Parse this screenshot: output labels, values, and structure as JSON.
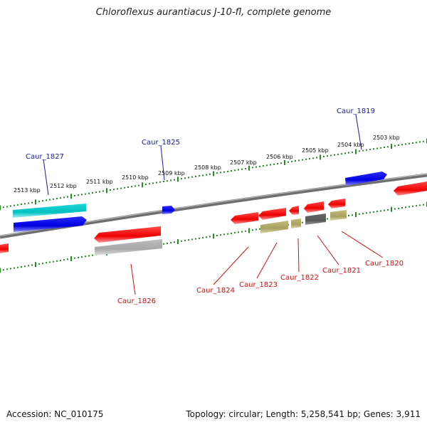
{
  "title": "Chloroflexus aurantiacus J-10-fl, complete genome",
  "footer": {
    "accession": "Accession: NC_010175",
    "summary": "Topology: circular; Length: 5,258,541 bp; Genes: 3,911"
  },
  "scale": {
    "unit": "kbp",
    "ticks": [
      "2513 kbp",
      "2512 kbp",
      "2511 kbp",
      "2510 kbp",
      "2509 kbp",
      "2508 kbp",
      "2507 kbp",
      "2506 kbp",
      "2505 kbp",
      "2504 kbp",
      "2503 kbp"
    ]
  },
  "colors": {
    "forward_label": "#1a1aa6",
    "reverse_label": "#cc1111",
    "scale": "#2a8a2a",
    "backbone": "#888888"
  },
  "genes_forward": [
    {
      "label": "Caur_1827"
    },
    {
      "label": "Caur_1825"
    },
    {
      "label": "Caur_1819"
    }
  ],
  "genes_reverse": [
    {
      "label": "Caur_1826"
    },
    {
      "label": "Caur_1824"
    },
    {
      "label": "Caur_1823"
    },
    {
      "label": "Caur_1822"
    },
    {
      "label": "Caur_1821"
    },
    {
      "label": "Caur_1820"
    }
  ]
}
